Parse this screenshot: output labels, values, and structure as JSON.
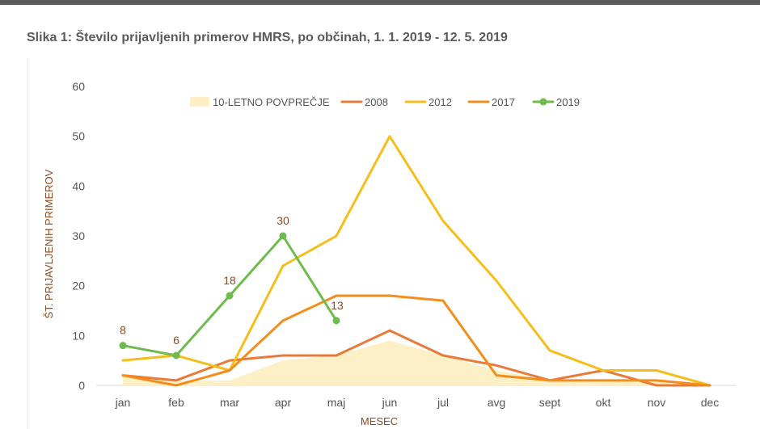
{
  "caption": "Slika 1: Število prijavljenih primerov HMRS, po občinah, 1. 1. 2019 - 12. 5. 2019",
  "chart_data": {
    "type": "line",
    "title": "Slika 1: Število prijavljenih primerov HMRS, po občinah, 1. 1. 2019 - 12. 5. 2019",
    "xlabel": "MESEC",
    "ylabel": "ŠT. PRIJAVLJENIH PRIMEROV",
    "ylim": [
      0,
      60
    ],
    "yticks": [
      0,
      10,
      20,
      30,
      40,
      50,
      60
    ],
    "grid": false,
    "legend_position": "top",
    "categories": [
      "jan",
      "feb",
      "mar",
      "apr",
      "maj",
      "jun",
      "jul",
      "avg",
      "sept",
      "okt",
      "nov",
      "dec"
    ],
    "series": [
      {
        "name": "10-LETNO POVPREČJE",
        "kind": "area",
        "color": "#fdefc6",
        "values": [
          2,
          1,
          1,
          5,
          6,
          9,
          6,
          3,
          1,
          1,
          1,
          0
        ]
      },
      {
        "name": "2008",
        "kind": "line",
        "color": "#e87b3a",
        "values": [
          2,
          1,
          5,
          6,
          6,
          11,
          6,
          4,
          1,
          3,
          0,
          0
        ]
      },
      {
        "name": "2012",
        "kind": "line",
        "color": "#f5be1b",
        "values": [
          5,
          6,
          3,
          24,
          30,
          50,
          33,
          21,
          7,
          3,
          3,
          0
        ]
      },
      {
        "name": "2017",
        "kind": "line",
        "color": "#f28e1c",
        "values": [
          2,
          0,
          3,
          13,
          18,
          18,
          17,
          2,
          1,
          1,
          1,
          0
        ]
      },
      {
        "name": "2019",
        "kind": "line-marker",
        "color": "#6fbb4e",
        "values": [
          8,
          6,
          18,
          30,
          13,
          null,
          null,
          null,
          null,
          null,
          null,
          null
        ],
        "labels": [
          "8",
          "6",
          "18",
          "30",
          "13"
        ]
      }
    ]
  }
}
